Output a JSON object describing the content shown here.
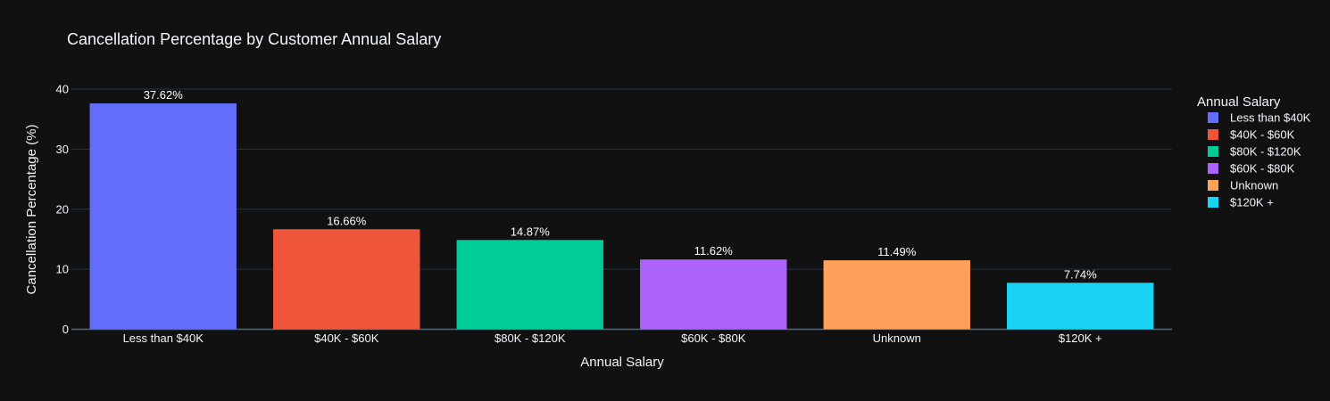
{
  "chart_data": {
    "type": "bar",
    "title": "Cancellation Percentage by Customer Annual Salary",
    "xlabel": "Annual Salary",
    "ylabel": "Cancellation Percentage (%)",
    "ylim": [
      0,
      40
    ],
    "yticks": [
      0,
      10,
      20,
      30,
      40
    ],
    "grid": true,
    "legend": {
      "title": "Annual Salary",
      "placement": "right"
    },
    "categories": [
      "Less than $40K",
      "$40K - $60K",
      "$80K - $120K",
      "$60K - $80K",
      "Unknown",
      "$120K +"
    ],
    "series": [
      {
        "name": "Less than $40K",
        "category": "Less than $40K",
        "value": 37.62,
        "label": "37.62%",
        "color": "#636efa"
      },
      {
        "name": "$40K - $60K",
        "category": "$40K - $60K",
        "value": 16.66,
        "label": "16.66%",
        "color": "#ef553b"
      },
      {
        "name": "$80K - $120K",
        "category": "$80K - $120K",
        "value": 14.87,
        "label": "14.87%",
        "color": "#00cc96"
      },
      {
        "name": "$60K - $80K",
        "category": "$60K - $80K",
        "value": 11.62,
        "label": "11.62%",
        "color": "#ab63fa"
      },
      {
        "name": "Unknown",
        "category": "Unknown",
        "value": 11.49,
        "label": "11.49%",
        "color": "#ffa15a"
      },
      {
        "name": "$120K +",
        "category": "$120K +",
        "value": 7.74,
        "label": "7.74%",
        "color": "#19d3f3"
      }
    ]
  }
}
